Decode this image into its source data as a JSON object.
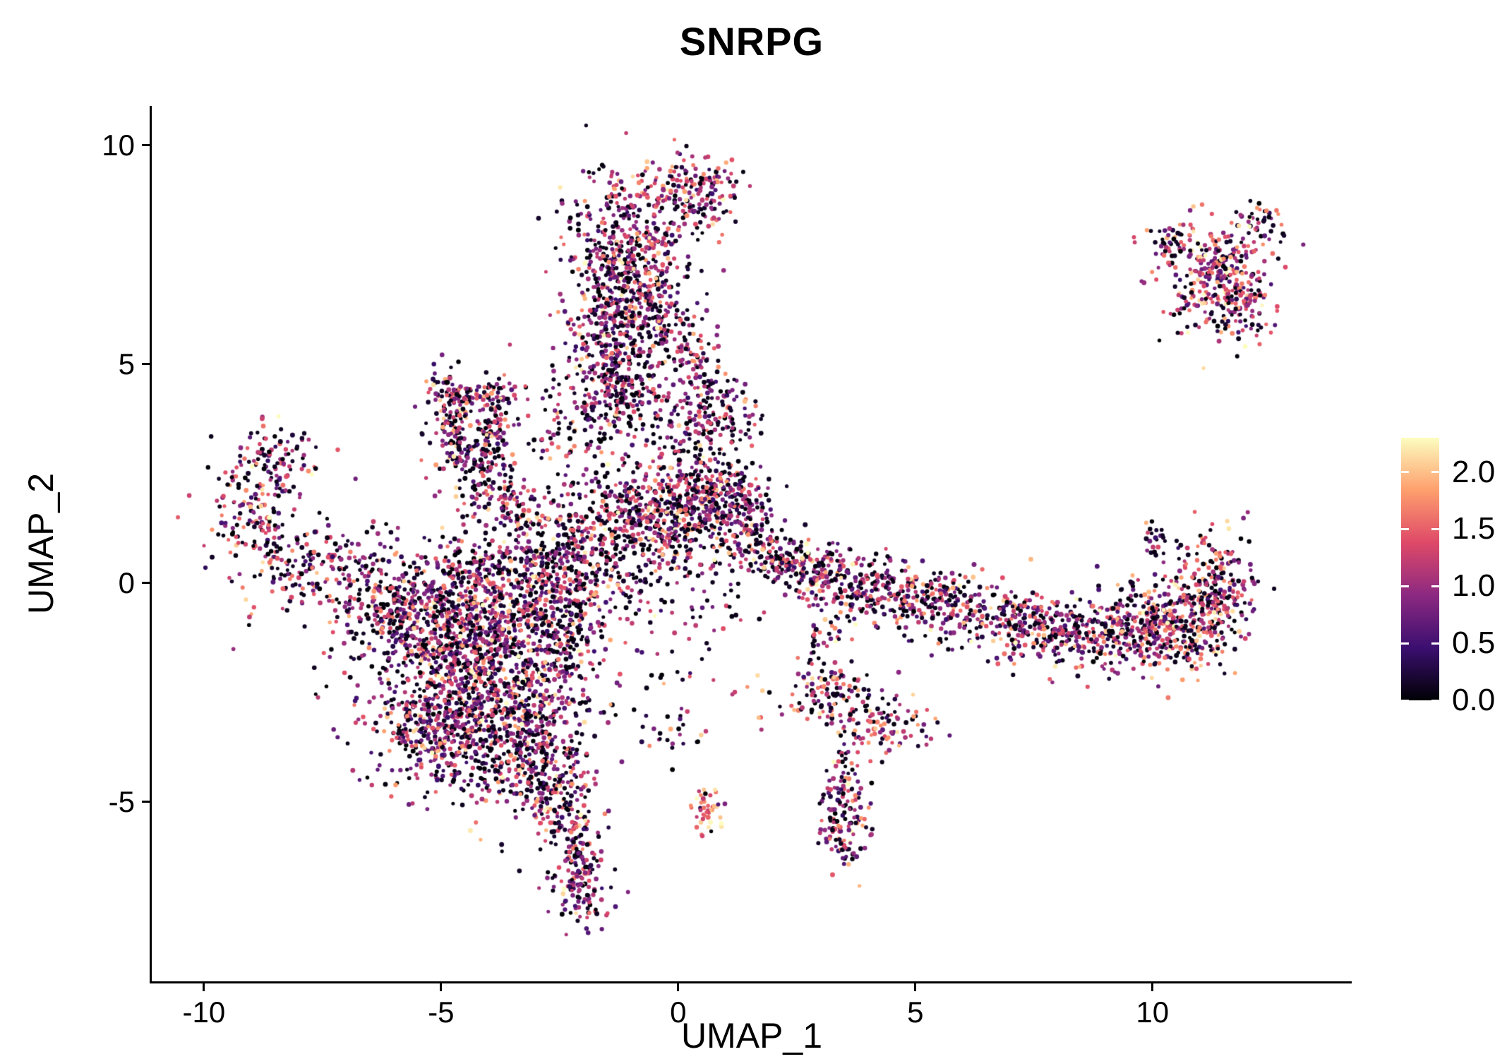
{
  "chart_data": {
    "type": "scatter",
    "title": "SNRPG",
    "xlabel": "UMAP_1",
    "ylabel": "UMAP_2",
    "xlim": [
      -11.1,
      14.2
    ],
    "ylim": [
      -9.1,
      10.9
    ],
    "grid": false,
    "xticks": [
      {
        "value": -10,
        "label": "-10"
      },
      {
        "value": -5,
        "label": "-5"
      },
      {
        "value": 0,
        "label": "0"
      },
      {
        "value": 5,
        "label": "5"
      },
      {
        "value": 10,
        "label": "10"
      }
    ],
    "yticks": [
      {
        "value": -5,
        "label": "-5"
      },
      {
        "value": 0,
        "label": "0"
      },
      {
        "value": 5,
        "label": "5"
      },
      {
        "value": 10,
        "label": "10"
      }
    ],
    "legend": {
      "position": "right",
      "ticks": [
        "2.0",
        "1.5",
        "1.0",
        "0.5",
        "0.0"
      ],
      "domain": [
        0,
        2.3
      ],
      "colormap": "magma",
      "stops": [
        "#000004",
        "#3b0f70",
        "#8c2981",
        "#de4968",
        "#fe9f6d",
        "#fcfdbf"
      ]
    },
    "point_style": {
      "radius": 3,
      "seed": 42
    },
    "clusters": [
      {
        "cx": -4.4,
        "cy": -2.4,
        "sx": 1.15,
        "sy": 1.05,
        "n": 950
      },
      {
        "cx": -3.4,
        "cy": -1.1,
        "sx": 0.95,
        "sy": 0.75,
        "n": 500
      },
      {
        "cx": -5.3,
        "cy": -0.9,
        "sx": 0.75,
        "sy": 0.55,
        "n": 260
      },
      {
        "cx": -4.9,
        "cy": -3.4,
        "sx": 0.6,
        "sy": 0.6,
        "n": 220
      },
      {
        "cx": -3.0,
        "cy": -3.9,
        "sx": 0.55,
        "sy": 0.75,
        "n": 260
      },
      {
        "cx": -2.45,
        "cy": -5.1,
        "sx": 0.32,
        "sy": 0.55,
        "n": 130,
        "mean": 1.15
      },
      {
        "cx": -2.05,
        "cy": -6.6,
        "sx": 0.3,
        "sy": 0.65,
        "n": 170
      },
      {
        "cx": -3.9,
        "cy": 0.3,
        "sx": 0.9,
        "sy": 0.5,
        "n": 200,
        "dark": 0.35
      },
      {
        "cx": -2.6,
        "cy": -0.2,
        "sx": 0.6,
        "sy": 0.7,
        "n": 220
      },
      {
        "cx": -2.2,
        "cy": 1.0,
        "sx": 0.55,
        "sy": 0.6,
        "n": 160,
        "dark": 0.4
      },
      {
        "cx": -8.9,
        "cy": 1.4,
        "sx": 0.5,
        "sy": 0.75,
        "n": 170,
        "rot": 15
      },
      {
        "cx": -8.55,
        "cy": 2.9,
        "sx": 0.5,
        "sy": 0.4,
        "n": 90,
        "rot": -30
      },
      {
        "cx": -7.5,
        "cy": 0.4,
        "sx": 0.85,
        "sy": 0.45,
        "n": 150,
        "rot": 20,
        "dark": 0.35
      },
      {
        "cx": -6.3,
        "cy": -0.35,
        "sx": 0.7,
        "sy": 0.45,
        "n": 130,
        "rot": 15
      },
      {
        "cx": -4.75,
        "cy": 3.5,
        "sx": 0.2,
        "sy": 0.8,
        "n": 130,
        "rot": 8
      },
      {
        "cx": -3.95,
        "cy": 3.2,
        "sx": 0.18,
        "sy": 0.75,
        "n": 110,
        "rot": -12
      },
      {
        "cx": -4.35,
        "cy": 4.3,
        "sx": 0.5,
        "sy": 0.2,
        "n": 90
      },
      {
        "cx": -4.3,
        "cy": 3.2,
        "sx": 0.45,
        "sy": 0.55,
        "n": 70,
        "dark": 0.45
      },
      {
        "cx": -3.55,
        "cy": 1.9,
        "sx": 0.35,
        "sy": 0.5,
        "n": 90,
        "rot": 25
      },
      {
        "cx": -1.15,
        "cy": 7.4,
        "sx": 0.6,
        "sy": 1.05,
        "n": 520
      },
      {
        "cx": -1.3,
        "cy": 5.4,
        "sx": 0.5,
        "sy": 0.85,
        "n": 300,
        "dark": 0.32
      },
      {
        "cx": 0.3,
        "cy": 8.95,
        "sx": 0.5,
        "sy": 0.4,
        "n": 170,
        "mean": 1.1
      },
      {
        "cx": -1.6,
        "cy": 4.2,
        "sx": 0.6,
        "sy": 0.5,
        "n": 140,
        "dark": 0.35
      },
      {
        "cx": -0.35,
        "cy": 6.4,
        "sx": 0.35,
        "sy": 0.8,
        "n": 120
      },
      {
        "cx": -2.0,
        "cy": 3.2,
        "sx": 0.7,
        "sy": 0.6,
        "n": 80,
        "dark": 0.45
      },
      {
        "cx": -0.2,
        "cy": 1.6,
        "sx": 0.95,
        "sy": 0.55,
        "n": 480,
        "dark": 0.34
      },
      {
        "cx": 0.9,
        "cy": 1.95,
        "sx": 0.5,
        "sy": 0.4,
        "n": 170
      },
      {
        "cx": -0.9,
        "cy": 0.5,
        "sx": 0.7,
        "sy": 0.55,
        "n": 160,
        "dark": 0.5
      },
      {
        "cx": 0.75,
        "cy": 3.95,
        "sx": 0.5,
        "sy": 0.5,
        "n": 150
      },
      {
        "cx": 0.1,
        "cy": 2.9,
        "sx": 0.5,
        "sy": 0.5,
        "n": 90,
        "dark": 0.4
      },
      {
        "cx": 1.4,
        "cy": 1.3,
        "sx": 0.4,
        "sy": 0.45,
        "n": 70,
        "dark": 0.4
      },
      {
        "cx": 0.3,
        "cy": 5.2,
        "sx": 0.3,
        "sy": 0.4,
        "n": 60,
        "dark": 0.35
      },
      {
        "cx": 2.35,
        "cy": 0.55,
        "sx": 0.45,
        "sy": 0.3,
        "n": 110,
        "rot": -15,
        "mean": 1.05
      },
      {
        "cx": 3.3,
        "cy": 0.15,
        "sx": 0.55,
        "sy": 0.35,
        "n": 140,
        "rot": -10
      },
      {
        "cx": 4.35,
        "cy": -0.2,
        "sx": 0.6,
        "sy": 0.38,
        "n": 150,
        "rot": -8,
        "mean": 1.05
      },
      {
        "cx": 5.4,
        "cy": -0.45,
        "sx": 0.55,
        "sy": 0.35,
        "n": 120
      },
      {
        "cx": 6.6,
        "cy": -0.8,
        "sx": 0.85,
        "sy": 0.4,
        "n": 170,
        "rot": -8
      },
      {
        "cx": 8.1,
        "cy": -1.05,
        "sx": 0.85,
        "sy": 0.45,
        "n": 230,
        "rot": -4
      },
      {
        "cx": 9.6,
        "cy": -1.15,
        "sx": 0.8,
        "sy": 0.5,
        "n": 300,
        "mean": 1.1
      },
      {
        "cx": 10.85,
        "cy": -0.75,
        "sx": 0.6,
        "sy": 0.6,
        "n": 300,
        "rot": 25,
        "mean": 1.2
      },
      {
        "cx": 11.4,
        "cy": 0.15,
        "sx": 0.3,
        "sy": 0.5,
        "n": 110,
        "rot": 10,
        "mean": 1.25
      },
      {
        "cx": 10.15,
        "cy": 0.95,
        "sx": 0.22,
        "sy": 0.22,
        "n": 25,
        "dark": 0.5
      },
      {
        "cx": 11.3,
        "cy": 7.0,
        "sx": 0.6,
        "sy": 0.65,
        "n": 300,
        "mean": 1.15,
        "dark": 0.22
      },
      {
        "cx": 12.35,
        "cy": 8.3,
        "sx": 0.3,
        "sy": 0.25,
        "n": 35,
        "mean": 1.2
      },
      {
        "cx": 10.35,
        "cy": 7.85,
        "sx": 0.3,
        "sy": 0.22,
        "n": 40,
        "dark": 0.35
      },
      {
        "cx": 11.9,
        "cy": 6.3,
        "sx": 0.35,
        "sy": 0.45,
        "n": 70,
        "mean": 1.2
      },
      {
        "cx": 3.5,
        "cy": -5.1,
        "sx": 0.28,
        "sy": 0.75,
        "n": 160,
        "mean": 1.05
      },
      {
        "cx": 3.35,
        "cy": -2.6,
        "sx": 0.3,
        "sy": 0.4,
        "n": 80,
        "mean": 1.1
      },
      {
        "cx": 4.3,
        "cy": -3.2,
        "sx": 0.5,
        "sy": 0.38,
        "n": 100,
        "mean": 1.1
      },
      {
        "cx": 0.6,
        "cy": -5.3,
        "sx": 0.18,
        "sy": 0.3,
        "n": 45,
        "mean": 1.45,
        "dark": 0.05
      },
      {
        "cx": 2.95,
        "cy": -1.5,
        "sx": 0.22,
        "sy": 0.55,
        "n": 45,
        "dark": 0.4
      },
      {
        "cx": 2.3,
        "cy": -2.7,
        "sx": 0.5,
        "sy": 0.3,
        "n": 25,
        "mean": 1.3,
        "dark": 0.2,
        "hot": 0.1
      },
      {
        "cx": -0.4,
        "cy": -3.3,
        "sx": 0.55,
        "sy": 0.4,
        "n": 30,
        "dark": 0.5
      },
      {
        "cx": 1.8,
        "cy": 0.8,
        "sx": 0.4,
        "sy": 0.35,
        "n": 35,
        "dark": 0.45
      },
      {
        "cx": 0.9,
        "cy": -0.4,
        "sx": 0.5,
        "sy": 0.4,
        "n": 25,
        "dark": 0.5
      },
      {
        "cx": 0.2,
        "cy": -1.6,
        "sx": 0.5,
        "sy": 0.5,
        "n": 18,
        "dark": 0.5
      },
      {
        "cx": -6.2,
        "cy": -4.4,
        "sx": 0.8,
        "sy": 0.5,
        "n": 8,
        "dark": 0.6
      }
    ]
  }
}
